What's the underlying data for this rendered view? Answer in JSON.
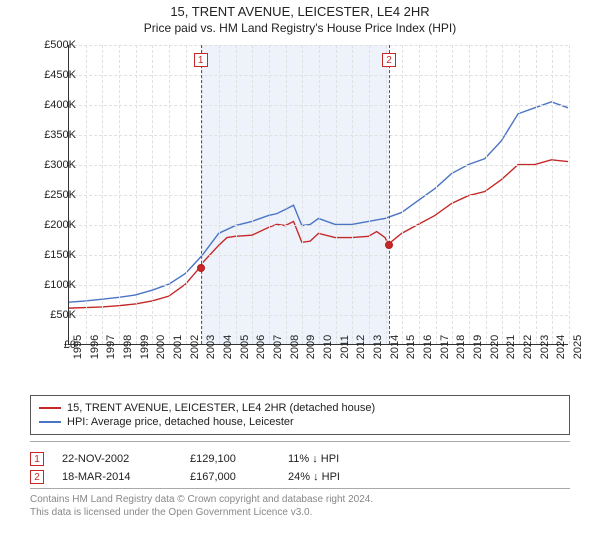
{
  "header": {
    "title": "15, TRENT AVENUE, LEICESTER, LE4 2HR",
    "subtitle": "Price paid vs. HM Land Registry's House Price Index (HPI)"
  },
  "chart": {
    "type": "line",
    "background_color": "#ffffff",
    "grid_color": "#e0e0e0",
    "shade_color": "#eef3fb",
    "xlim": [
      1995,
      2025
    ],
    "ylim": [
      0,
      500000
    ],
    "y_ticks": [
      0,
      50000,
      100000,
      150000,
      200000,
      250000,
      300000,
      350000,
      400000,
      450000,
      500000
    ],
    "y_tick_labels": [
      "£0",
      "£50K",
      "£100K",
      "£150K",
      "£200K",
      "£250K",
      "£300K",
      "£350K",
      "£400K",
      "£450K",
      "£500K"
    ],
    "x_ticks": [
      1995,
      1996,
      1997,
      1998,
      1999,
      2000,
      2001,
      2002,
      2003,
      2004,
      2005,
      2006,
      2007,
      2008,
      2009,
      2010,
      2011,
      2012,
      2013,
      2014,
      2015,
      2016,
      2017,
      2018,
      2019,
      2020,
      2021,
      2022,
      2023,
      2024,
      2025
    ],
    "label_fontsize": 11,
    "series": [
      {
        "name": "property",
        "color": "#c62828",
        "stroke_width": 1.4,
        "points": [
          [
            1995,
            60000
          ],
          [
            1996,
            61000
          ],
          [
            1997,
            62000
          ],
          [
            1998,
            64000
          ],
          [
            1999,
            67000
          ],
          [
            2000,
            72000
          ],
          [
            2001,
            80000
          ],
          [
            2002,
            100000
          ],
          [
            2002.9,
            129100
          ],
          [
            2003,
            135000
          ],
          [
            2004,
            165000
          ],
          [
            2004.5,
            178000
          ],
          [
            2005,
            180000
          ],
          [
            2006,
            182000
          ],
          [
            2007,
            195000
          ],
          [
            2007.5,
            200000
          ],
          [
            2008,
            198000
          ],
          [
            2008.5,
            205000
          ],
          [
            2009,
            170000
          ],
          [
            2009.5,
            172000
          ],
          [
            2010,
            185000
          ],
          [
            2011,
            178000
          ],
          [
            2012,
            178000
          ],
          [
            2013,
            180000
          ],
          [
            2013.5,
            188000
          ],
          [
            2014,
            178000
          ],
          [
            2014.2,
            167000
          ],
          [
            2015,
            185000
          ],
          [
            2016,
            200000
          ],
          [
            2017,
            215000
          ],
          [
            2018,
            235000
          ],
          [
            2019,
            248000
          ],
          [
            2020,
            255000
          ],
          [
            2021,
            275000
          ],
          [
            2022,
            300000
          ],
          [
            2023,
            300000
          ],
          [
            2024,
            308000
          ],
          [
            2025,
            305000
          ]
        ]
      },
      {
        "name": "hpi",
        "color": "#4a74c4",
        "stroke_width": 1.4,
        "points": [
          [
            1995,
            70000
          ],
          [
            1996,
            72000
          ],
          [
            1997,
            75000
          ],
          [
            1998,
            78000
          ],
          [
            1999,
            82000
          ],
          [
            2000,
            90000
          ],
          [
            2001,
            100000
          ],
          [
            2002,
            118000
          ],
          [
            2003,
            148000
          ],
          [
            2004,
            185000
          ],
          [
            2005,
            198000
          ],
          [
            2006,
            205000
          ],
          [
            2007,
            215000
          ],
          [
            2007.5,
            218000
          ],
          [
            2008,
            225000
          ],
          [
            2008.5,
            232000
          ],
          [
            2009,
            198000
          ],
          [
            2009.5,
            200000
          ],
          [
            2010,
            210000
          ],
          [
            2011,
            200000
          ],
          [
            2012,
            200000
          ],
          [
            2013,
            205000
          ],
          [
            2014,
            210000
          ],
          [
            2015,
            220000
          ],
          [
            2016,
            240000
          ],
          [
            2017,
            260000
          ],
          [
            2018,
            285000
          ],
          [
            2019,
            300000
          ],
          [
            2020,
            310000
          ],
          [
            2021,
            340000
          ],
          [
            2022,
            385000
          ],
          [
            2023,
            395000
          ],
          [
            2024,
            405000
          ],
          [
            2025,
            395000
          ]
        ]
      }
    ],
    "shaded_region": {
      "x_start": 2002.9,
      "x_end": 2014.2
    },
    "markers": [
      {
        "index": 1,
        "x": 2002.9,
        "y": 129100
      },
      {
        "index": 2,
        "x": 2014.2,
        "y": 167000
      }
    ]
  },
  "legend": {
    "items": [
      {
        "color": "#c62828",
        "label": "15, TRENT AVENUE, LEICESTER, LE4 2HR (detached house)"
      },
      {
        "color": "#4a74c4",
        "label": "HPI: Average price, detached house, Leicester"
      }
    ]
  },
  "transactions": [
    {
      "index": 1,
      "date": "22-NOV-2002",
      "price": "£129,100",
      "hpi_delta": "11% ↓ HPI"
    },
    {
      "index": 2,
      "date": "18-MAR-2014",
      "price": "£167,000",
      "hpi_delta": "24% ↓ HPI"
    }
  ],
  "footer": {
    "line1": "Contains HM Land Registry data © Crown copyright and database right 2024.",
    "line2": "This data is licensed under the Open Government Licence v3.0."
  }
}
